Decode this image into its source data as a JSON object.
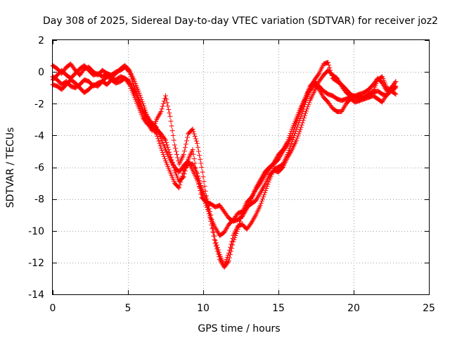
{
  "chart_data": {
    "type": "scatter",
    "title": "Day 308 of 2025, Sidereal Day-to-day VTEC variation (SDTVAR) for receiver joz2",
    "xlabel": "GPS time / hours",
    "ylabel": "SDTVAR / TECUs",
    "xlim": [
      0,
      25
    ],
    "ylim": [
      -14,
      2
    ],
    "xticks": [
      0,
      5,
      10,
      15,
      20,
      25
    ],
    "yticks": [
      -14,
      -12,
      -10,
      -8,
      -6,
      -4,
      -2,
      0,
      2
    ],
    "grid": true,
    "marker": "+",
    "color": "#ff0000",
    "series": [
      {
        "x": [
          0.0,
          0.3,
          0.6,
          0.9,
          1.2,
          1.5,
          1.8,
          2.1,
          2.4,
          2.7,
          3.0,
          3.3,
          3.6,
          3.9,
          4.2,
          4.5,
          4.8,
          5.1,
          5.4,
          5.7,
          6.0,
          6.3,
          6.6,
          6.9,
          7.2,
          7.5,
          7.8,
          8.1,
          8.4,
          8.7,
          9.0,
          9.3,
          9.6,
          9.9,
          10.2,
          10.5,
          10.8,
          11.1,
          11.4,
          11.7,
          12.0,
          12.3,
          12.6,
          12.9,
          13.2,
          13.5,
          13.8,
          14.1,
          14.4,
          14.7,
          15.0,
          15.3,
          15.6,
          15.9,
          16.2,
          16.5,
          16.8,
          17.1,
          17.4,
          17.7,
          18.0,
          18.3,
          18.6,
          18.9,
          19.2,
          19.5,
          19.8,
          20.1,
          20.4,
          20.7,
          21.0,
          21.3,
          21.6,
          21.9,
          22.2,
          22.5,
          22.8
        ],
        "y": [
          -0.3,
          -0.5,
          -0.8,
          -0.6,
          -0.9,
          -1.0,
          -0.8,
          -0.5,
          -0.6,
          -0.9,
          -0.7,
          -0.6,
          -0.3,
          -0.4,
          -0.5,
          -0.3,
          -0.4,
          -0.8,
          -1.5,
          -2.2,
          -2.9,
          -3.3,
          -3.2,
          -3.5,
          -4.2,
          -4.9,
          -5.5,
          -6.0,
          -6.3,
          -5.9,
          -5.6,
          -6.2,
          -6.8,
          -7.6,
          -8.4,
          -9.2,
          -9.8,
          -10.3,
          -10.1,
          -9.6,
          -9.3,
          -8.9,
          -8.8,
          -8.2,
          -7.9,
          -7.4,
          -7.0,
          -6.5,
          -6.1,
          -5.7,
          -5.2,
          -4.9,
          -4.4,
          -3.6,
          -2.9,
          -2.2,
          -1.6,
          -0.9,
          -0.6,
          -0.9,
          -1.2,
          -1.4,
          -1.5,
          -1.7,
          -1.8,
          -1.7,
          -1.6,
          -1.6,
          -1.5,
          -1.7,
          -1.4,
          -1.3,
          -1.2,
          -1.4,
          -1.5,
          -1.1,
          -1.0
        ]
      },
      {
        "x": [
          0.0,
          0.3,
          0.6,
          0.9,
          1.2,
          1.5,
          1.8,
          2.1,
          2.4,
          2.7,
          3.0,
          3.3,
          3.6,
          3.9,
          4.2,
          4.5,
          4.8,
          5.1,
          5.4,
          5.7,
          6.0,
          6.3,
          6.6,
          6.9,
          7.2,
          7.5,
          7.8,
          8.1,
          8.4,
          8.7,
          9.0,
          9.3,
          9.6,
          9.9,
          10.2,
          10.5,
          10.8,
          11.1,
          11.4,
          11.7,
          12.0,
          12.3,
          12.6,
          12.9,
          13.2,
          13.5,
          13.8,
          14.1,
          14.4,
          14.7,
          15.0,
          15.3,
          15.6,
          15.9,
          16.2,
          16.5,
          16.8,
          17.1,
          17.4,
          17.7,
          18.0,
          18.3,
          18.6,
          18.9,
          19.2,
          19.5,
          19.8,
          20.1,
          20.4,
          20.7,
          21.0,
          21.3,
          21.6,
          21.9,
          22.2,
          22.5,
          22.8
        ],
        "y": [
          0.4,
          0.2,
          -0.1,
          0.3,
          0.5,
          0.1,
          -0.2,
          0.2,
          0.3,
          0.0,
          -0.2,
          0.1,
          -0.1,
          -0.3,
          -0.1,
          0.2,
          0.4,
          0.1,
          -0.5,
          -1.2,
          -2.0,
          -2.8,
          -3.3,
          -3.6,
          -3.9,
          -4.3,
          -5.2,
          -6.2,
          -6.9,
          -6.6,
          -5.5,
          -4.9,
          -6.6,
          -7.9,
          -8.2,
          -8.3,
          -8.5,
          -8.4,
          -8.8,
          -9.2,
          -9.4,
          -9.3,
          -9.1,
          -8.6,
          -8.0,
          -7.3,
          -6.8,
          -6.3,
          -6.0,
          -5.8,
          -5.5,
          -5.0,
          -4.6,
          -4.0,
          -3.2,
          -2.4,
          -1.6,
          -1.0,
          -0.5,
          -0.1,
          0.5,
          0.6,
          -0.4,
          -0.6,
          -0.8,
          -1.1,
          -1.4,
          -1.6,
          -1.7,
          -1.6,
          -1.4,
          -1.2,
          -0.5,
          -0.3,
          -1.0,
          -1.2,
          -1.4
        ]
      },
      {
        "x": [
          0.0,
          0.3,
          0.6,
          0.9,
          1.2,
          1.5,
          1.8,
          2.1,
          2.4,
          2.7,
          3.0,
          3.3,
          3.6,
          3.9,
          4.2,
          4.5,
          4.8,
          5.1,
          5.4,
          5.7,
          6.0,
          6.3,
          6.6,
          6.9,
          7.2,
          7.5,
          7.8,
          8.1,
          8.4,
          8.7,
          9.0,
          9.3,
          9.6,
          9.9,
          10.2,
          10.5,
          10.8,
          11.1,
          11.4,
          11.7,
          12.0,
          12.3,
          12.6,
          12.9,
          13.2,
          13.5,
          13.8,
          14.1,
          14.4,
          14.7,
          15.0,
          15.3,
          15.6,
          15.9,
          16.2,
          16.5,
          16.8,
          17.1,
          17.4,
          17.7,
          18.0,
          18.3,
          18.6,
          18.9,
          19.2,
          19.5,
          19.8,
          20.1,
          20.4,
          20.7,
          21.0,
          21.3,
          21.6,
          21.9,
          22.2,
          22.5,
          22.8
        ],
        "y": [
          -0.8,
          -0.9,
          -1.1,
          -0.8,
          -0.5,
          -0.7,
          -1.0,
          -1.3,
          -1.1,
          -0.8,
          -0.9,
          -0.6,
          -0.8,
          -0.5,
          -0.7,
          -0.6,
          -0.4,
          -0.6,
          -1.2,
          -1.8,
          -2.5,
          -3.2,
          -3.7,
          -3.0,
          -2.5,
          -1.5,
          -2.8,
          -4.6,
          -5.8,
          -5.2,
          -3.9,
          -3.6,
          -4.5,
          -6.0,
          -7.8,
          -9.0,
          -10.6,
          -11.5,
          -12.2,
          -11.4,
          -10.3,
          -9.7,
          -9.6,
          -9.9,
          -9.5,
          -9.0,
          -8.4,
          -7.6,
          -6.8,
          -6.1,
          -6.0,
          -5.8,
          -5.2,
          -4.4,
          -3.6,
          -2.8,
          -1.9,
          -1.2,
          -0.8,
          -1.1,
          -1.6,
          -1.9,
          -2.3,
          -2.5,
          -2.5,
          -2.0,
          -1.7,
          -1.9,
          -1.8,
          -1.7,
          -1.6,
          -1.5,
          -1.7,
          -1.9,
          -1.4,
          -1.2,
          -0.9
        ]
      },
      {
        "x": [
          0.0,
          0.3,
          0.6,
          0.9,
          1.2,
          1.5,
          1.8,
          2.1,
          2.4,
          2.7,
          3.0,
          3.3,
          3.6,
          3.9,
          4.2,
          4.5,
          4.8,
          5.1,
          5.4,
          5.7,
          6.0,
          6.3,
          6.6,
          6.9,
          7.2,
          7.5,
          7.8,
          8.1,
          8.4,
          8.7,
          9.0,
          9.3,
          9.6,
          9.9,
          10.2,
          10.5,
          10.8,
          11.1,
          11.4,
          11.7,
          12.0,
          12.3,
          12.6,
          12.9,
          13.2,
          13.5,
          13.8,
          14.1,
          14.4,
          14.7,
          15.0,
          15.3,
          15.6,
          15.9,
          16.2,
          16.5,
          16.8,
          17.1,
          17.4,
          17.7,
          18.0,
          18.3,
          18.6,
          18.9,
          19.2,
          19.5,
          19.8,
          20.1,
          20.4,
          20.7,
          21.0,
          21.3,
          21.6,
          21.9,
          22.2,
          22.5,
          22.8
        ],
        "y": [
          -0.5,
          -0.2,
          0.1,
          -0.2,
          -0.4,
          -0.1,
          0.2,
          0.4,
          0.1,
          -0.2,
          -0.1,
          -0.3,
          -0.1,
          -0.2,
          0.0,
          0.1,
          0.3,
          0.0,
          -0.9,
          -1.6,
          -2.4,
          -2.9,
          -3.5,
          -3.9,
          -4.8,
          -5.6,
          -6.3,
          -7.0,
          -7.3,
          -6.2,
          -5.8,
          -5.8,
          -6.4,
          -7.3,
          -8.0,
          -9.4,
          -10.8,
          -11.8,
          -12.3,
          -11.9,
          -10.7,
          -9.9,
          -8.9,
          -8.5,
          -8.3,
          -8.1,
          -7.6,
          -7.1,
          -6.5,
          -6.2,
          -6.3,
          -6.0,
          -5.4,
          -4.9,
          -4.3,
          -3.5,
          -2.6,
          -1.8,
          -1.2,
          -0.6,
          -0.2,
          0.1,
          -0.2,
          -0.4,
          -0.9,
          -1.3,
          -1.5,
          -1.5,
          -1.4,
          -1.3,
          -1.1,
          -0.8,
          -0.4,
          -0.7,
          -1.2,
          -1.0,
          -0.6
        ]
      }
    ]
  }
}
